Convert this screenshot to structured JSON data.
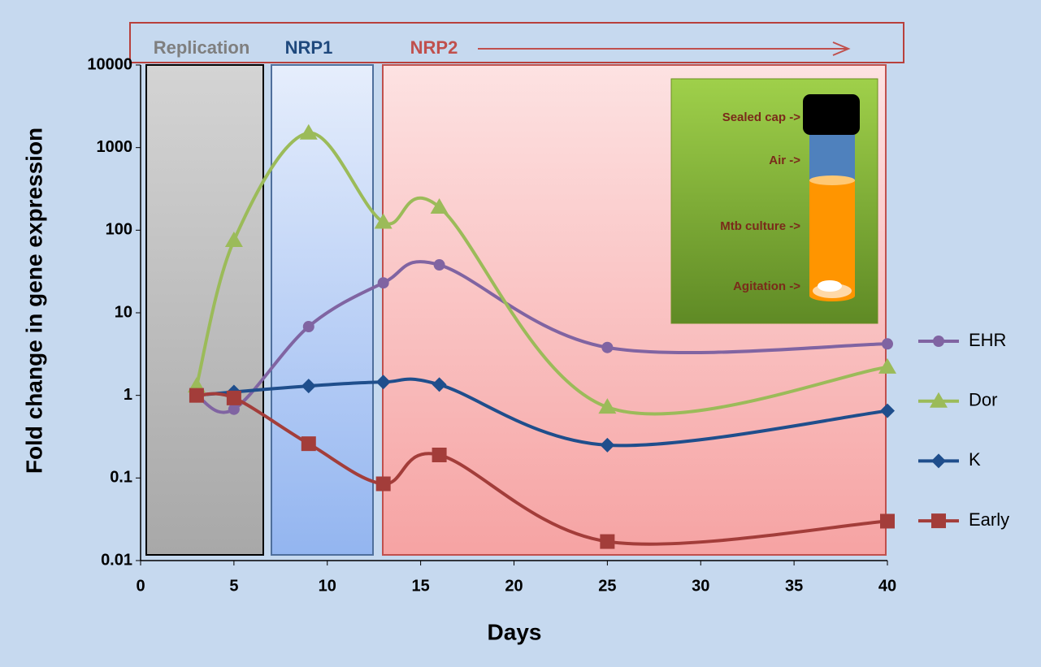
{
  "chart_data": {
    "type": "line",
    "log_y": true,
    "x_label": "Days",
    "y_label": "Fold change in gene expression",
    "phases": [
      "Replication",
      "NRP1",
      "NRP2"
    ],
    "inset_labels": [
      "Sealed cap ->",
      "Air ->",
      "Mtb culture ->",
      "Agitation ->"
    ],
    "x": [
      3,
      5,
      9,
      13,
      16,
      25,
      40
    ],
    "series": [
      {
        "name": "EHR",
        "color": "#8064a2",
        "marker": "circle",
        "values": [
          1,
          0.68,
          6.8,
          23,
          38,
          3.8,
          4.2
        ]
      },
      {
        "name": "Dor",
        "color": "#9bbb59",
        "marker": "triangle",
        "values": [
          1.3,
          75,
          1500,
          125,
          190,
          0.72,
          2.2
        ]
      },
      {
        "name": "K",
        "color": "#1f4e8c",
        "marker": "diamond",
        "values": [
          1,
          1.1,
          1.3,
          1.45,
          1.35,
          0.25,
          0.65
        ]
      },
      {
        "name": "Early",
        "color": "#a33d3a",
        "marker": "square",
        "values": [
          1,
          0.93,
          0.26,
          0.085,
          0.19,
          0.017,
          0.03
        ]
      }
    ],
    "xlim": [
      0,
      40
    ],
    "xticks": [
      0,
      5,
      10,
      15,
      20,
      25,
      30,
      35,
      40
    ],
    "ylim": [
      0.01,
      10000
    ],
    "yticks": [
      0.01,
      0.1,
      1,
      10,
      100,
      1000,
      10000
    ],
    "legend": "right"
  }
}
